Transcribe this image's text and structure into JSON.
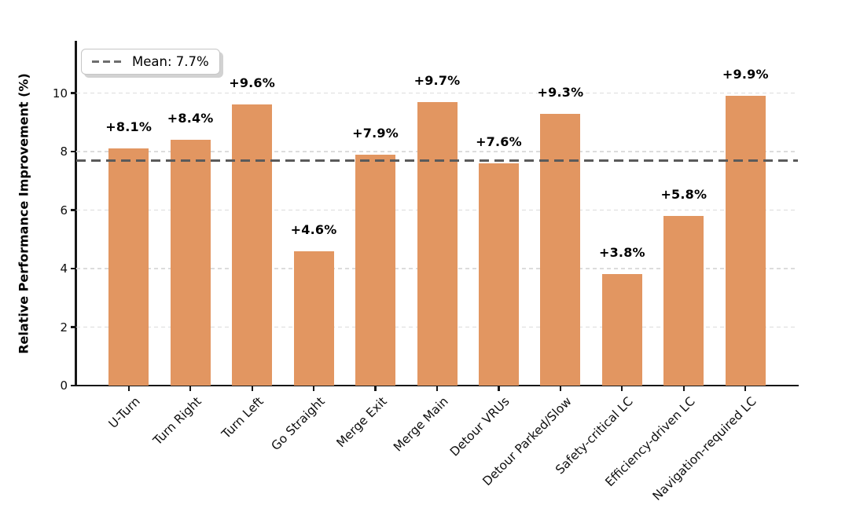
{
  "chart_data": {
    "type": "bar",
    "title": "",
    "xlabel": "",
    "ylabel": "Relative Performance Improvement (%)",
    "categories": [
      "U-Turn",
      "Turn Right",
      "Turn Left",
      "Go Straight",
      "Merge Exit",
      "Merge Main",
      "Detour VRUs",
      "Detour Parked/Slow",
      "Safety-critical LC",
      "Efficiency-driven LC",
      "Navigation-required LC"
    ],
    "values": [
      8.1,
      8.4,
      9.6,
      4.6,
      7.9,
      9.7,
      7.6,
      9.3,
      3.8,
      5.8,
      9.9
    ],
    "bar_labels": [
      "+8.1%",
      "+8.4%",
      "+9.6%",
      "+4.6%",
      "+7.9%",
      "+9.7%",
      "+7.6%",
      "+9.3%",
      "+3.8%",
      "+5.8%",
      "+9.9%"
    ],
    "yticks": [
      0,
      2,
      4,
      6,
      8,
      10
    ],
    "ylim": [
      0,
      11.76
    ],
    "mean_value": 7.7,
    "legend": {
      "label": "Mean: 7.7%",
      "position": "upper-left",
      "line_style": "dashed"
    },
    "grid": {
      "axis": "y",
      "style": "dashed",
      "color": "#dcdcdc"
    },
    "colors": {
      "bar": "#E29661",
      "mean_line": "#5A5A5A",
      "gridline": "#DCDCDC",
      "axis": "#161616",
      "text": "#000000",
      "background": "#FFFFFF"
    },
    "x_tick_rotation_deg": 45
  }
}
